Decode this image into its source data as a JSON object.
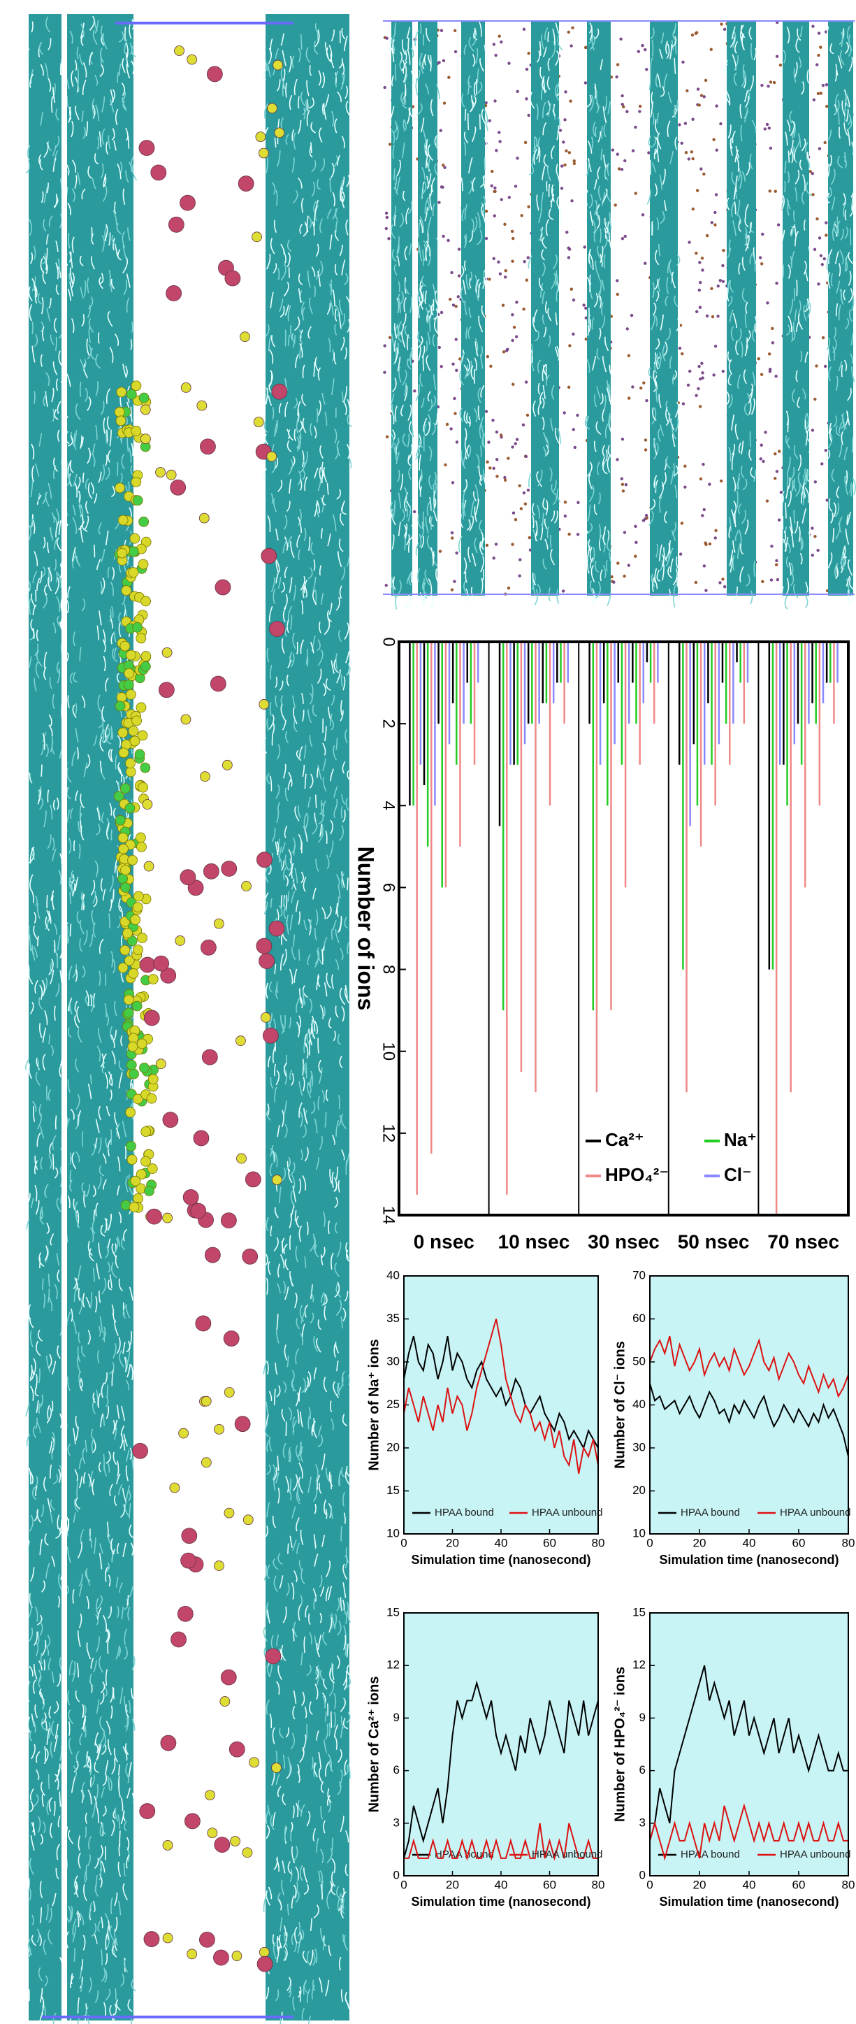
{
  "chart_data": [
    {
      "type": "spikes",
      "ylabel": "Number of ions",
      "inverted": true,
      "categories": [
        "0 nsec",
        "10 nsec",
        "30 nsec",
        "50 nsec",
        "70 nsec"
      ],
      "ylim": [
        0,
        14
      ],
      "yticks": [
        0,
        2,
        4,
        6,
        8,
        10,
        12,
        14
      ],
      "series": [
        {
          "name": "Ca²⁺",
          "color": "#000000",
          "values": [
            [
              4,
              3.5,
              2,
              1.5,
              1
            ],
            [
              4.5,
              3,
              2,
              1.5,
              1
            ],
            [
              2,
              1.5,
              1,
              1,
              0.5
            ],
            [
              3,
              2.5,
              1.5,
              1,
              0.5
            ],
            [
              8,
              3,
              2,
              1.5,
              1
            ]
          ]
        },
        {
          "name": "Na⁺",
          "color": "#22cc22",
          "values": [
            [
              4,
              5,
              6,
              3,
              2
            ],
            [
              9,
              3,
              2,
              1.5,
              1
            ],
            [
              9,
              4,
              3,
              2,
              1
            ],
            [
              8,
              4,
              3,
              2,
              1
            ],
            [
              8,
              4,
              3,
              2,
              1
            ]
          ]
        },
        {
          "name": "HPO₄²⁻",
          "color": "#f08888",
          "values": [
            [
              13.5,
              12.5,
              6,
              5,
              3
            ],
            [
              13.5,
              10.5,
              11,
              4,
              2
            ],
            [
              11,
              9,
              6,
              3,
              2
            ],
            [
              11,
              5,
              4,
              3,
              2
            ],
            [
              14,
              11,
              6,
              4,
              2
            ]
          ]
        },
        {
          "name": "Cl⁻",
          "color": "#8888ff",
          "values": [
            [
              3,
              4,
              2.5,
              2,
              1
            ],
            [
              3,
              2.5,
              2,
              1.5,
              1
            ],
            [
              3,
              2.5,
              2,
              1.5,
              1
            ],
            [
              4.5,
              3,
              2.5,
              2,
              1
            ],
            [
              3,
              2.5,
              2,
              1.5,
              1
            ]
          ]
        }
      ]
    },
    {
      "type": "line",
      "ylabel": "Number of Na⁺ ions",
      "xlabel": "Simulation time (nanosecond)",
      "x": [
        0,
        2,
        4,
        6,
        8,
        10,
        12,
        14,
        16,
        18,
        20,
        22,
        24,
        26,
        28,
        30,
        32,
        34,
        36,
        38,
        40,
        42,
        44,
        46,
        48,
        50,
        52,
        54,
        56,
        58,
        60,
        62,
        64,
        66,
        68,
        70,
        72,
        74,
        76,
        78,
        80
      ],
      "xlim": [
        0,
        80
      ],
      "xticks": [
        0,
        20,
        40,
        60,
        80
      ],
      "ylim": [
        10,
        40
      ],
      "yticks": [
        10,
        15,
        20,
        25,
        30,
        35,
        40
      ],
      "series": [
        {
          "name": "HPAA bound",
          "color": "#000000",
          "values": [
            28,
            31,
            33,
            30,
            29,
            32,
            31,
            28,
            30,
            33,
            29,
            31,
            30,
            28,
            27,
            29,
            30,
            28,
            27,
            26,
            27,
            25,
            26,
            28,
            27,
            25,
            24,
            25,
            26,
            24,
            23,
            22,
            24,
            23,
            21,
            22,
            21,
            20,
            22,
            21,
            20
          ]
        },
        {
          "name": "HPAA unbound",
          "color": "#dd1111",
          "values": [
            24,
            27,
            25,
            23,
            26,
            24,
            22,
            25,
            23,
            27,
            24,
            26,
            25,
            22,
            24,
            27,
            29,
            31,
            33,
            35,
            32,
            28,
            26,
            24,
            23,
            25,
            24,
            22,
            23,
            21,
            23,
            20,
            22,
            19,
            18,
            21,
            17,
            20,
            19,
            21,
            18
          ]
        }
      ]
    },
    {
      "type": "line",
      "ylabel": "Number of Cl⁻ ions",
      "xlabel": "Simulation time (nanosecond)",
      "x": [
        0,
        2,
        4,
        6,
        8,
        10,
        12,
        14,
        16,
        18,
        20,
        22,
        24,
        26,
        28,
        30,
        32,
        34,
        36,
        38,
        40,
        42,
        44,
        46,
        48,
        50,
        52,
        54,
        56,
        58,
        60,
        62,
        64,
        66,
        68,
        70,
        72,
        74,
        76,
        78,
        80
      ],
      "xlim": [
        0,
        80
      ],
      "xticks": [
        0,
        20,
        40,
        60,
        80
      ],
      "ylim": [
        10,
        70
      ],
      "yticks": [
        10,
        20,
        30,
        40,
        50,
        60,
        70
      ],
      "series": [
        {
          "name": "HPAA bound",
          "color": "#000000",
          "values": [
            45,
            41,
            42,
            39,
            40,
            41,
            38,
            40,
            42,
            39,
            37,
            40,
            43,
            41,
            38,
            39,
            36,
            40,
            38,
            41,
            39,
            37,
            40,
            42,
            38,
            35,
            37,
            40,
            38,
            36,
            39,
            37,
            35,
            38,
            36,
            40,
            37,
            39,
            36,
            33,
            28
          ]
        },
        {
          "name": "HPAA unbound",
          "color": "#dd1111",
          "values": [
            50,
            53,
            55,
            52,
            56,
            49,
            54,
            51,
            48,
            50,
            53,
            47,
            50,
            52,
            49,
            51,
            48,
            53,
            50,
            47,
            49,
            52,
            55,
            50,
            48,
            51,
            46,
            49,
            52,
            50,
            47,
            45,
            49,
            46,
            43,
            47,
            44,
            46,
            42,
            44,
            47
          ]
        }
      ]
    },
    {
      "type": "line",
      "ylabel": "Number of Ca²⁺ ions",
      "xlabel": "Simulation time (nanosecond)",
      "x": [
        0,
        2,
        4,
        6,
        8,
        10,
        12,
        14,
        16,
        18,
        20,
        22,
        24,
        26,
        28,
        30,
        32,
        34,
        36,
        38,
        40,
        42,
        44,
        46,
        48,
        50,
        52,
        54,
        56,
        58,
        60,
        62,
        64,
        66,
        68,
        70,
        72,
        74,
        76,
        78,
        80
      ],
      "xlim": [
        0,
        80
      ],
      "xticks": [
        0,
        20,
        40,
        60,
        80
      ],
      "ylim": [
        0,
        15
      ],
      "yticks": [
        0,
        3,
        6,
        9,
        12,
        15
      ],
      "series": [
        {
          "name": "HPAA bound",
          "color": "#000000",
          "values": [
            1,
            2,
            4,
            3,
            2,
            3,
            4,
            5,
            3,
            5,
            8,
            10,
            9,
            10,
            10,
            11,
            10,
            9,
            10,
            8,
            7,
            8,
            7,
            6,
            8,
            7,
            9,
            8,
            7,
            8,
            10,
            9,
            8,
            7,
            10,
            9,
            8,
            10,
            8,
            9,
            10
          ]
        },
        {
          "name": "HPAA unbound",
          "color": "#dd1111",
          "values": [
            1,
            1,
            2,
            1,
            1,
            1,
            2,
            1,
            1,
            2,
            1,
            1,
            2,
            1,
            2,
            1,
            1,
            2,
            1,
            2,
            1,
            1,
            2,
            1,
            1,
            2,
            1,
            1,
            3,
            1,
            2,
            1,
            2,
            1,
            3,
            2,
            1,
            1,
            2,
            1,
            1
          ]
        }
      ]
    },
    {
      "type": "line",
      "ylabel": "Number of HPO₄²⁻ ions",
      "xlabel": "Simulation time (nanosecond)",
      "x": [
        0,
        2,
        4,
        6,
        8,
        10,
        12,
        14,
        16,
        18,
        20,
        22,
        24,
        26,
        28,
        30,
        32,
        34,
        36,
        38,
        40,
        42,
        44,
        46,
        48,
        50,
        52,
        54,
        56,
        58,
        60,
        62,
        64,
        66,
        68,
        70,
        72,
        74,
        76,
        78,
        80
      ],
      "xlim": [
        0,
        80
      ],
      "xticks": [
        0,
        20,
        40,
        60,
        80
      ],
      "ylim": [
        0,
        15
      ],
      "yticks": [
        0,
        3,
        6,
        9,
        12,
        15
      ],
      "series": [
        {
          "name": "HPAA bound",
          "color": "#000000",
          "values": [
            2,
            3,
            5,
            4,
            3,
            6,
            7,
            8,
            9,
            10,
            11,
            12,
            10,
            11,
            10,
            9,
            10,
            8,
            9,
            10,
            8,
            9,
            8,
            7,
            8,
            9,
            7,
            8,
            9,
            7,
            8,
            7,
            6,
            7,
            8,
            7,
            6,
            6,
            7,
            6,
            6
          ]
        },
        {
          "name": "HPAA unbound",
          "color": "#dd1111",
          "values": [
            2,
            3,
            2,
            1,
            2,
            3,
            2,
            2,
            3,
            2,
            1,
            3,
            2,
            3,
            2,
            4,
            3,
            2,
            3,
            4,
            3,
            2,
            3,
            2,
            3,
            2,
            2,
            3,
            2,
            2,
            3,
            2,
            3,
            2,
            2,
            3,
            2,
            2,
            3,
            2,
            2
          ]
        }
      ]
    }
  ]
}
